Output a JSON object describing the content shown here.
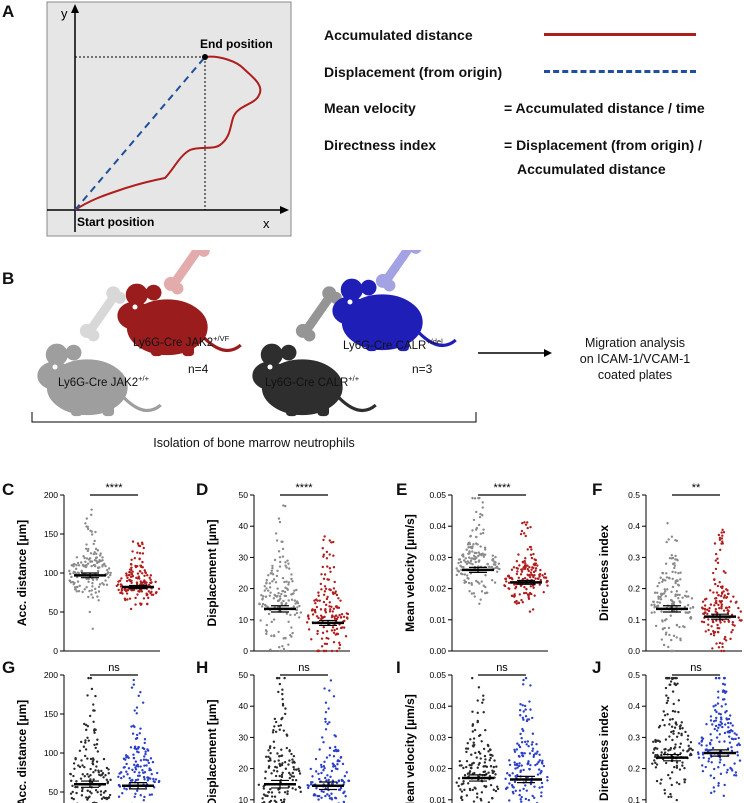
{
  "panel_letters": {
    "a": "A",
    "b": "B",
    "c": "C",
    "d": "D",
    "e": "E",
    "f": "F",
    "g": "G",
    "h": "H",
    "i": "I",
    "j": "J"
  },
  "schematic": {
    "y_axis": "y",
    "x_axis": "x",
    "end_position": "End position",
    "start_position": "Start position"
  },
  "definitions": {
    "accumulated_distance": "Accumulated distance",
    "displacement": "Displacement (from origin)",
    "mean_velocity": "Mean velocity",
    "mean_velocity_formula": "= Accumulated distance / time",
    "directness_index": "Directness index",
    "directness_formula_line1": "= Displacement (from origin) /",
    "directness_formula_line2": "Accumulated distance",
    "colors": {
      "accumulated": "#b01d1d",
      "displacement": "#1f4f9c"
    }
  },
  "mice": {
    "jak2_wt": {
      "prefix": "Ly6G-Cre JAK2",
      "sup": "+/+"
    },
    "jak2_vf": {
      "prefix": "Ly6G-Cre JAK2",
      "sup": "+/VF"
    },
    "calr_wt": {
      "prefix": "Ly6G-Cre CALR",
      "sup": "+/+"
    },
    "calr_del": {
      "prefix": "Ly6G-Cre CALR",
      "sup": "+/del"
    },
    "n_jak2": "n=4",
    "n_calr": "n=3",
    "isolation": "Isolation of bone marrow neutrophils",
    "migration_line1": "Migration analysis",
    "migration_line2": "on ICAM-1/VCAM-1",
    "migration_line3": "coated plates",
    "colors": {
      "wt": "#9e9e9e",
      "vf": "#9b1c1c",
      "calr_wt": "#2e2e2e",
      "del": "#1f1fb8"
    }
  },
  "chart_data": [
    {
      "id": "C",
      "type": "scatter",
      "ylabel": "Acc. distance [µm]",
      "ylim": [
        0,
        200
      ],
      "yticks": [
        0,
        50,
        100,
        150,
        200
      ],
      "significance": "****",
      "groups": [
        {
          "name": "Ly6G-Cre JAK2 +/+",
          "mean": 97,
          "sem": 3,
          "spread": 22,
          "color": "#8a8a8a"
        },
        {
          "name": "Ly6G-Cre JAK2 +/VF",
          "mean": 82,
          "sem": 2,
          "spread": 15,
          "color": "#b01d1d"
        }
      ]
    },
    {
      "id": "D",
      "type": "scatter",
      "ylabel": "Displacement [µm]",
      "ylim": [
        0,
        50
      ],
      "yticks": [
        0,
        10,
        20,
        30,
        40,
        50
      ],
      "significance": "****",
      "groups": [
        {
          "name": "Ly6G-Cre JAK2 +/+",
          "mean": 13.5,
          "sem": 1,
          "spread": 9,
          "color": "#8a8a8a"
        },
        {
          "name": "Ly6G-Cre JAK2 +/VF",
          "mean": 9,
          "sem": 0.8,
          "spread": 7,
          "color": "#b01d1d"
        }
      ]
    },
    {
      "id": "E",
      "type": "scatter",
      "ylabel": "Mean velocity [µm/s]",
      "ylim": [
        0,
        0.05
      ],
      "yticks": [
        0,
        0.01,
        0.02,
        0.03,
        0.04,
        0.05
      ],
      "significance": "****",
      "groups": [
        {
          "name": "Ly6G-Cre JAK2 +/+",
          "mean": 0.026,
          "sem": 0.0008,
          "spread": 0.006,
          "color": "#8a8a8a"
        },
        {
          "name": "Ly6G-Cre JAK2 +/VF",
          "mean": 0.022,
          "sem": 0.0006,
          "spread": 0.005,
          "color": "#b01d1d"
        }
      ]
    },
    {
      "id": "F",
      "type": "scatter",
      "ylabel": "Directness index",
      "ylim": [
        0,
        0.5
      ],
      "yticks": [
        0,
        0.1,
        0.2,
        0.3,
        0.4,
        0.5
      ],
      "significance": "**",
      "groups": [
        {
          "name": "Ly6G-Cre JAK2 +/+",
          "mean": 0.135,
          "sem": 0.01,
          "spread": 0.08,
          "color": "#8a8a8a"
        },
        {
          "name": "Ly6G-Cre JAK2 +/VF",
          "mean": 0.11,
          "sem": 0.008,
          "spread": 0.07,
          "color": "#b01d1d"
        }
      ]
    },
    {
      "id": "G",
      "type": "scatter",
      "ylabel": "Acc. distance [µm]",
      "ylim": [
        0,
        200
      ],
      "yticks": [
        0,
        50,
        100,
        150,
        200
      ],
      "significance": "ns",
      "groups": [
        {
          "name": "Ly6G-Cre CALR +/+",
          "mean": 60,
          "sem": 4,
          "spread": 35,
          "color": "#2a2a2a"
        },
        {
          "name": "Ly6G-Cre CALR +/del",
          "mean": 58,
          "sem": 4,
          "spread": 35,
          "color": "#2b3fc7"
        }
      ]
    },
    {
      "id": "H",
      "type": "scatter",
      "ylabel": "Displacement [µm]",
      "ylim": [
        0,
        50
      ],
      "yticks": [
        0,
        10,
        20,
        30,
        40,
        50
      ],
      "significance": "ns",
      "groups": [
        {
          "name": "Ly6G-Cre CALR +/+",
          "mean": 15,
          "sem": 1.2,
          "spread": 9,
          "color": "#2a2a2a"
        },
        {
          "name": "Ly6G-Cre CALR +/del",
          "mean": 14.5,
          "sem": 1.2,
          "spread": 9,
          "color": "#2b3fc7"
        }
      ]
    },
    {
      "id": "I",
      "type": "scatter",
      "ylabel": "Mean velocity [µm/s]",
      "ylim": [
        0,
        0.05
      ],
      "yticks": [
        0,
        0.01,
        0.02,
        0.03,
        0.04,
        0.05
      ],
      "significance": "ns",
      "groups": [
        {
          "name": "Ly6G-Cre CALR +/+",
          "mean": 0.017,
          "sem": 0.001,
          "spread": 0.009,
          "color": "#2a2a2a"
        },
        {
          "name": "Ly6G-Cre CALR +/del",
          "mean": 0.0165,
          "sem": 0.001,
          "spread": 0.009,
          "color": "#2b3fc7"
        }
      ]
    },
    {
      "id": "J",
      "type": "scatter",
      "ylabel": "Directness index",
      "ylim": [
        0,
        0.5
      ],
      "yticks": [
        0,
        0.1,
        0.2,
        0.3,
        0.4,
        0.5
      ],
      "significance": "ns",
      "groups": [
        {
          "name": "Ly6G-Cre CALR +/+",
          "mean": 0.235,
          "sem": 0.01,
          "spread": 0.09,
          "color": "#2a2a2a"
        },
        {
          "name": "Ly6G-Cre CALR +/del",
          "mean": 0.25,
          "sem": 0.01,
          "spread": 0.09,
          "color": "#2b3fc7"
        }
      ]
    }
  ]
}
